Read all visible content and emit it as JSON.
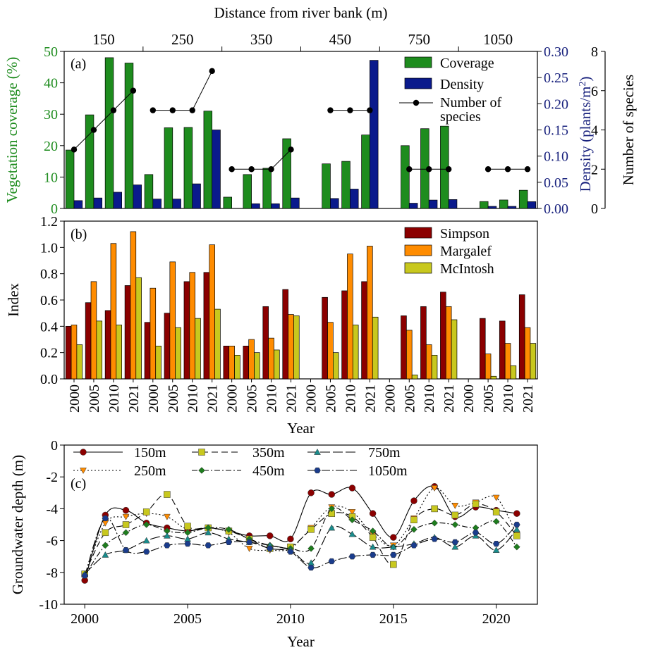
{
  "chart_data": [
    {
      "panel": "(a)",
      "type": "bar",
      "x2label": "Distance from river bank (m)",
      "groups": [
        "150",
        "250",
        "350",
        "450",
        "750",
        "1050"
      ],
      "years": [
        "2000",
        "2005",
        "2010",
        "2021"
      ],
      "ylabel": "Vegetation coverage (%)",
      "y2label": "Density (plants/m",
      "y2label_sup": "2",
      "y2label_end": ")",
      "y3label": "Number of species",
      "ylim": [
        0,
        50
      ],
      "y2lim": [
        0,
        0.3
      ],
      "y3lim": [
        0,
        8
      ],
      "yticks": [
        "0",
        "10",
        "20",
        "30",
        "40",
        "50"
      ],
      "y2ticks": [
        "0.00",
        "0.05",
        "0.10",
        "0.15",
        "0.20",
        "0.25",
        "0.30"
      ],
      "y3ticks": [
        "0",
        "2",
        "4",
        "6",
        "8"
      ],
      "legend": [
        "Coverage",
        "Density",
        "Number of",
        "species"
      ],
      "colors": {
        "coverage": "#1e8c1e",
        "density": "#0a1a8c",
        "species": "#000000",
        "left_axis": "#1e8c1e",
        "right_axis": "#1a237e"
      },
      "series": [
        {
          "name": "Coverage",
          "values": [
            [
              18.6,
              29.8,
              48.0,
              46.3
            ],
            [
              10.8,
              25.7,
              25.8,
              31.0
            ],
            [
              3.6,
              10.8,
              12.8,
              22.2
            ],
            [
              null,
              14.2,
              15.0,
              23.4
            ],
            [
              null,
              20.0,
              25.4,
              26.2
            ],
            [
              null,
              2.2,
              2.7,
              5.8
            ]
          ]
        },
        {
          "name": "Density",
          "values": [
            [
              0.015,
              0.02,
              0.031,
              0.045
            ],
            [
              null,
              0.018,
              0.047,
              0.048
            ],
            [
              null,
              0.009,
              0.009,
              0.02
            ],
            [
              null,
              0.019,
              0.037,
              0.283
            ],
            [
              null,
              0.01,
              0.016,
              0.017
            ],
            [
              null,
              0.004,
              0.004,
              0.013
            ]
          ],
          "extra_250_2021": 0.15
        },
        {
          "name": "Number of species",
          "values": [
            [
              3,
              4,
              5,
              6
            ],
            [
              5,
              5,
              5,
              7
            ],
            [
              2,
              2,
              2,
              3
            ],
            [
              null,
              5,
              5,
              5
            ],
            [
              null,
              2,
              2,
              2
            ],
            [
              null,
              2,
              2,
              2
            ]
          ]
        }
      ]
    },
    {
      "panel": "(b)",
      "type": "bar",
      "ylabel": "Index",
      "xlabel": "Year",
      "ylim": [
        0,
        1.2
      ],
      "yticks": [
        "0.0",
        "0.2",
        "0.4",
        "0.6",
        "0.8",
        "1.0",
        "1.2"
      ],
      "categories": [
        "2000",
        "2005",
        "2010",
        "2021",
        "2000",
        "2005",
        "2010",
        "2021",
        "2000",
        "2005",
        "2010",
        "2021",
        "2000",
        "2005",
        "2010",
        "2021",
        "2000",
        "2005",
        "2010",
        "2021",
        "2000",
        "2005",
        "2010",
        "2021"
      ],
      "legend": [
        "Simpson",
        "Margalef",
        "McIntosh"
      ],
      "colors": {
        "Simpson": "#8b0000",
        "Margalef": "#ff8c00",
        "McIntosh": "#c8c81e"
      },
      "series": [
        {
          "name": "Simpson",
          "values": [
            0.4,
            0.58,
            0.52,
            0.71,
            0.43,
            0.5,
            0.74,
            0.81,
            0.25,
            0.25,
            0.55,
            0.68,
            null,
            0.62,
            0.67,
            0.74,
            null,
            0.48,
            0.55,
            0.66,
            null,
            0.46,
            0.44,
            0.64
          ]
        },
        {
          "name": "Margalef",
          "values": [
            0.41,
            0.74,
            1.03,
            1.12,
            0.69,
            0.89,
            0.81,
            1.02,
            0.25,
            0.3,
            0.31,
            0.49,
            null,
            0.43,
            0.95,
            1.01,
            null,
            0.37,
            0.26,
            0.55,
            null,
            0.19,
            0.27,
            0.39
          ]
        },
        {
          "name": "McIntosh",
          "values": [
            0.26,
            0.44,
            0.41,
            0.77,
            0.25,
            0.39,
            0.46,
            0.53,
            0.18,
            0.2,
            0.22,
            0.48,
            null,
            0.2,
            0.41,
            0.47,
            null,
            0.03,
            0.18,
            0.45,
            null,
            0.02,
            0.1,
            0.27
          ]
        }
      ]
    },
    {
      "panel": "(c)",
      "type": "line",
      "ylabel": "Groundwater depth (m)",
      "xlabel": "Year",
      "xlim": [
        1999,
        2022
      ],
      "ylim": [
        -10,
        0
      ],
      "xticks": [
        "2000",
        "2005",
        "2010",
        "2015",
        "2020"
      ],
      "yticks": [
        "0",
        "-2",
        "-4",
        "-6",
        "-8",
        "-10"
      ],
      "x": [
        2000,
        2001,
        2002,
        2003,
        2004,
        2005,
        2006,
        2007,
        2008,
        2009,
        2010,
        2011,
        2012,
        2013,
        2014,
        2015,
        2016,
        2017,
        2018,
        2019,
        2020,
        2021
      ],
      "series": [
        {
          "name": "150m",
          "color": "#8b0000",
          "marker": "circle",
          "dash": "",
          "values": [
            -8.5,
            -4.4,
            -4.1,
            -4.9,
            -5.2,
            -5.4,
            -5.2,
            -5.4,
            -5.7,
            -5.7,
            -5.9,
            -3.0,
            -3.1,
            -2.7,
            -4.3,
            -5.8,
            -3.5,
            -2.6,
            -4.5,
            -3.9,
            -4.1,
            -4.3
          ]
        },
        {
          "name": "250m",
          "color": "#ff8c00",
          "marker": "triangle-down",
          "dash": "2,3",
          "values": [
            -8.2,
            -4.9,
            -4.5,
            -4.3,
            -4.5,
            -5.3,
            -5.2,
            -5.5,
            -6.5,
            -6.6,
            -6.5,
            -5.2,
            -3.9,
            -4.2,
            -5.6,
            -6.3,
            -4.6,
            -2.7,
            -3.8,
            -3.6,
            -3.3,
            -5.6
          ]
        },
        {
          "name": "350m",
          "color": "#c8c81e",
          "marker": "square",
          "dash": "9,5",
          "values": [
            -8.1,
            -5.5,
            -5.0,
            -4.2,
            -3.1,
            -5.1,
            -5.2,
            -5.4,
            -5.9,
            -6.5,
            -6.4,
            -5.3,
            -4.3,
            -4.5,
            -5.8,
            -7.5,
            -4.7,
            -4.0,
            -4.4,
            -3.7,
            -4.2,
            -5.7
          ]
        },
        {
          "name": "450m",
          "color": "#1e7d1e",
          "marker": "diamond",
          "dash": "8,3,2,3",
          "values": [
            -8.2,
            -6.3,
            -5.5,
            -5.0,
            -5.4,
            -5.5,
            -5.2,
            -5.3,
            -5.9,
            -6.3,
            -6.5,
            -6.5,
            -4.0,
            -4.7,
            -5.4,
            -6.4,
            -5.3,
            -4.9,
            -5.0,
            -5.2,
            -4.8,
            -6.4
          ]
        },
        {
          "name": "750m",
          "color": "#1a8c8c",
          "marker": "triangle",
          "dash": "14,4",
          "values": [
            -8.1,
            -6.9,
            -6.6,
            -6.0,
            -5.7,
            -5.9,
            -5.5,
            -5.9,
            -6.1,
            -6.3,
            -6.6,
            -7.4,
            -5.2,
            -5.6,
            -6.4,
            -6.4,
            -6.2,
            -5.8,
            -6.4,
            -5.7,
            -6.6,
            -5.3
          ]
        },
        {
          "name": "1050m",
          "color": "#1a3c8c",
          "marker": "hexagon",
          "dash": "12,3,2,3",
          "values": [
            -8.2,
            -4.6,
            -6.6,
            -6.7,
            -6.3,
            -6.2,
            -6.3,
            -6.1,
            -6.1,
            -6.5,
            -6.7,
            -7.7,
            -7.3,
            -7.0,
            -6.9,
            -6.9,
            -6.3,
            -5.9,
            -6.1,
            -5.5,
            -6.2,
            -5.0
          ]
        }
      ]
    }
  ]
}
